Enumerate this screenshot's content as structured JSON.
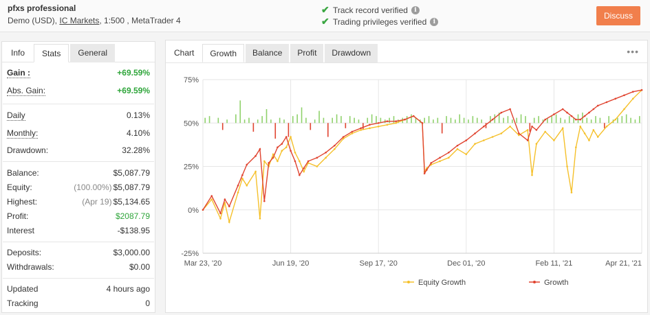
{
  "header": {
    "title": "pfxs professional",
    "sub_prefix": "Demo (USD),",
    "broker": "IC Markets",
    "sub_suffix": ", 1:500 , MetaTrader 4",
    "verify1": "Track record verified",
    "verify2": "Trading privileges verified",
    "discuss": "Discuss"
  },
  "left_tabs": [
    "Info",
    "Stats",
    "General"
  ],
  "stats": {
    "gain_label": "Gain :",
    "gain_value": "+69.59%",
    "abs_gain_label": "Abs. Gain:",
    "abs_gain_value": "+69.59%",
    "daily_label": "Daily",
    "daily_value": "0.13%",
    "monthly_label": "Monthly:",
    "monthly_value": "4.10%",
    "drawdown_label": "Drawdown:",
    "drawdown_value": "32.28%",
    "balance_label": "Balance:",
    "balance_value": "$5,087.79",
    "equity_label": "Equity:",
    "equity_pre": "(100.00%)",
    "equity_value": "$5,087.79",
    "highest_label": "Highest:",
    "highest_pre": "(Apr 19)",
    "highest_value": "$5,134.65",
    "profit_label": "Profit:",
    "profit_value": "$2087.79",
    "interest_label": "Interest",
    "interest_value": "-$138.95",
    "deposits_label": "Deposits:",
    "deposits_value": "$3,000.00",
    "withdrawals_label": "Withdrawals:",
    "withdrawals_value": "$0.00",
    "updated_label": "Updated",
    "updated_value": "4 hours ago",
    "tracking_label": "Tracking",
    "tracking_value": "0"
  },
  "right_tabs": [
    "Chart",
    "Growth",
    "Balance",
    "Profit",
    "Drawdown"
  ],
  "more_icon": "•••",
  "colors": {
    "equity": "#f5c02a",
    "growth": "#e0432f",
    "bar_pos": "#8fd16b",
    "bar_neg": "#e0432f",
    "accent": "#f17f4c"
  },
  "chart_data": {
    "type": "line",
    "x_ticks": [
      "Mar 23, '20",
      "Jun 19, '20",
      "Sep 17, '20",
      "Dec 01, '20",
      "Feb 11, '21",
      "Apr 21, '21"
    ],
    "y_ticks": [
      "75%",
      "50%",
      "25%",
      "0%",
      "-25%"
    ],
    "ylim": [
      -25,
      75
    ],
    "xlim": [
      0,
      100
    ],
    "grid": true,
    "legend_position": "bottom",
    "series": [
      {
        "name": "Equity Growth",
        "x": [
          0,
          2,
          4,
          5,
          6,
          8,
          9,
          10,
          12,
          13,
          14,
          15,
          16,
          17,
          18,
          19,
          20,
          21,
          22,
          23,
          24,
          26,
          28,
          30,
          32,
          34,
          36,
          38,
          40,
          42,
          44,
          46,
          48,
          50,
          50.5,
          51,
          52,
          54,
          56,
          58,
          60,
          62,
          64,
          66,
          68,
          70,
          72,
          74,
          75,
          76,
          78,
          80,
          82,
          83,
          84,
          85,
          86,
          87,
          88,
          89,
          90,
          92,
          94,
          96,
          98,
          100
        ],
        "y": [
          0,
          6,
          -5,
          4,
          -7,
          10,
          18,
          14,
          22,
          -5,
          28,
          25,
          32,
          28,
          34,
          36,
          42,
          33,
          28,
          22,
          27,
          25,
          30,
          35,
          41,
          44,
          46,
          47,
          48,
          49,
          50,
          52,
          54,
          50,
          22,
          24,
          26,
          28,
          30,
          35,
          32,
          38,
          40,
          42,
          44,
          48,
          43,
          46,
          20,
          38,
          45,
          40,
          47,
          25,
          10,
          36,
          48,
          44,
          40,
          46,
          42,
          48,
          52,
          58,
          64,
          69
        ]
      },
      {
        "name": "Growth",
        "x": [
          0,
          2,
          4,
          5,
          6,
          8,
          9,
          10,
          12,
          13,
          14,
          15,
          16,
          17,
          18,
          19,
          20,
          21,
          22,
          23,
          24,
          26,
          28,
          30,
          32,
          34,
          36,
          38,
          40,
          42,
          44,
          46,
          48,
          50,
          50.5,
          51,
          52,
          54,
          56,
          58,
          60,
          62,
          64,
          66,
          68,
          70,
          72,
          74,
          75,
          76,
          78,
          80,
          82,
          83,
          84,
          85,
          86,
          87,
          88,
          89,
          90,
          92,
          94,
          96,
          98,
          100
        ],
        "y": [
          0,
          8,
          -2,
          6,
          2,
          14,
          20,
          26,
          31,
          35,
          5,
          27,
          30,
          36,
          38,
          42,
          34,
          28,
          20,
          24,
          28,
          30,
          33,
          37,
          42,
          45,
          47,
          49,
          50,
          51,
          51,
          52,
          54,
          50,
          21,
          23,
          27,
          30,
          33,
          37,
          40,
          44,
          48,
          52,
          56,
          58,
          44,
          40,
          48,
          46,
          52,
          55,
          58,
          56,
          54,
          52,
          52,
          54,
          56,
          58,
          60,
          62,
          64,
          66,
          68,
          69
        ]
      }
    ],
    "bars": {
      "x_start": 0.5,
      "x_step": 1.0,
      "baseline": 50,
      "values": [
        3,
        4,
        0,
        3,
        -4,
        2,
        0,
        5,
        13,
        2,
        3,
        -5,
        2,
        4,
        8,
        2,
        -9,
        3,
        2,
        -8,
        4,
        5,
        9,
        3,
        -4,
        2,
        7,
        3,
        -8,
        3,
        5,
        4,
        -3,
        4,
        3,
        2,
        -4,
        3,
        5,
        4,
        3,
        2,
        3,
        4,
        2,
        3,
        4,
        5,
        3,
        2,
        3,
        4,
        2,
        3,
        -6,
        4,
        3,
        2,
        5,
        3,
        2,
        4,
        3,
        2,
        -3,
        4,
        5,
        6,
        3,
        4,
        2,
        3,
        5,
        4,
        -5,
        3,
        4,
        2,
        3,
        4,
        5,
        3,
        2,
        4,
        3,
        5,
        6,
        3,
        2,
        4,
        3,
        -3,
        4,
        2,
        3,
        4,
        5,
        3,
        2,
        4
      ]
    }
  }
}
